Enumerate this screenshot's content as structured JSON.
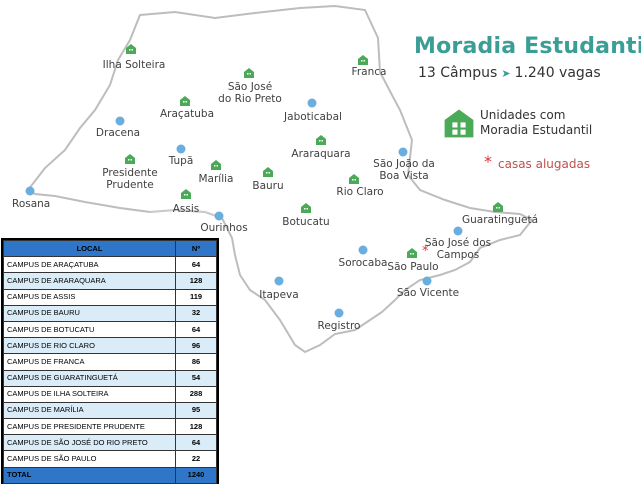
{
  "header": {
    "title": "Moradia Estudantil",
    "subtitle_left": "13 Câmpus",
    "subtitle_arrow": "➤",
    "subtitle_right": "1.240 vagas"
  },
  "legend": {
    "house_line1": "Unidades com",
    "house_line2": "Moradia Estudantil",
    "star_symbol": "*",
    "star_label": "casas alugadas"
  },
  "colors": {
    "map_fill": "#ffffff",
    "map_border": "#b8b8b8",
    "house_icon": "#4aaa58",
    "city_dot": "#6aaedf",
    "title": "#3a9e96",
    "table_header": "#2f75c8",
    "table_stripe": "#d9ecf8",
    "rented_star": "#dd3333"
  },
  "cities": {
    "ilha_solteira": "Ilha Solteira",
    "sao_jose_rio_preto_1": "São José",
    "sao_jose_rio_preto_2": "do Rio Preto",
    "franca": "Franca",
    "aracatuba": "Araçatuba",
    "dracena": "Dracena",
    "jaboticabal": "Jaboticabal",
    "araraquara": "Araraquara",
    "tupa": "Tupã",
    "presidente_prudente_1": "Presidente",
    "presidente_prudente_2": "Prudente",
    "marilia": "Marília",
    "bauru": "Bauru",
    "sao_joao_boa_vista_1": "São João da",
    "sao_joao_boa_vista_2": "Boa Vista",
    "rio_claro": "Rio Claro",
    "rosana": "Rosana",
    "assis": "Assis",
    "ourinhos": "Ourinhos",
    "botucatu": "Botucatu",
    "guaratingueta": "Guaratinguetá",
    "sao_jose_campos_1": "São José dos",
    "sao_jose_campos_2": "Campos",
    "sorocaba": "Sorocaba",
    "sao_paulo": "São Paulo",
    "itapeva": "Itapeva",
    "sao_vicente": "São Vicente",
    "registro": "Registro"
  },
  "table": {
    "headers": [
      "LOCAL",
      "Nº"
    ],
    "rows": [
      {
        "local": "CAMPUS DE ARAÇATUBA",
        "n": "64"
      },
      {
        "local": "CAMPUS DE ARARAQUARA",
        "n": "128"
      },
      {
        "local": "CAMPUS DE ASSIS",
        "n": "119"
      },
      {
        "local": "CAMPUS DE BAURU",
        "n": "32"
      },
      {
        "local": "CAMPUS DE BOTUCATU",
        "n": "64"
      },
      {
        "local": "CAMPUS DE RIO CLARO",
        "n": "96"
      },
      {
        "local": "CAMPUS DE FRANCA",
        "n": "86"
      },
      {
        "local": "CAMPUS DE GUARATINGUETÁ",
        "n": "54"
      },
      {
        "local": "CAMPUS DE ILHA SOLTEIRA",
        "n": "288"
      },
      {
        "local": "CAMPUS DE MARÍLIA",
        "n": "95"
      },
      {
        "local": "CAMPUS DE PRESIDENTE PRUDENTE",
        "n": "128"
      },
      {
        "local": "CAMPUS DE SÃO JOSÉ DO RIO PRETO",
        "n": "64"
      },
      {
        "local": "CAMPUS DE SÃO PAULO",
        "n": "22"
      }
    ],
    "total_label": "TOTAL",
    "total_value": "1240"
  }
}
